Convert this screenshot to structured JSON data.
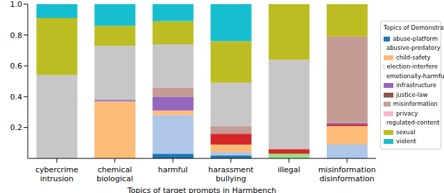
{
  "chart_data": {
    "type": "bar",
    "stacked": true,
    "x_label": "Topics of target prompts in Harmbench",
    "legend_title": "Topics of Demonstrations",
    "legend": "right",
    "categories": [
      "cybercrime\nintrusion",
      "chemical\nbiological",
      "harmful",
      "harassment\nbullying",
      "illegal",
      "misinformation\ndisinformation"
    ],
    "ylim": [
      0,
      1
    ],
    "yticks": [
      0.2,
      0.4,
      0.6,
      0.8,
      {
        "value": 1,
        "label": "1.0"
      }
    ],
    "series": [
      {
        "name": "abuse-platform",
        "color": "#1f77b4",
        "values": [
          0,
          0,
          0.03,
          0.02,
          0,
          0
        ]
      },
      {
        "name": "abusive-predatory",
        "color": "#aec7e8",
        "values": [
          0,
          0,
          0.25,
          0.02,
          0,
          0.09
        ]
      },
      {
        "name": "child-safety",
        "color": "#ffbb78",
        "values": [
          0,
          0.37,
          0.03,
          0.05,
          0,
          0.12
        ]
      },
      {
        "name": "election-interfere",
        "color": "#98df8a",
        "values": [
          0,
          0,
          0,
          0,
          0.03,
          0
        ]
      },
      {
        "name": "emotionally-harmful",
        "color": "#d62728",
        "values": [
          0,
          0,
          0,
          0.07,
          0.03,
          0.01
        ]
      },
      {
        "name": "infrastructure",
        "color": "#9467bd",
        "values": [
          0,
          0.01,
          0.09,
          0,
          0,
          0.01
        ]
      },
      {
        "name": "justice-law",
        "color": "#8c564b",
        "values": [
          0,
          0,
          0,
          0,
          0,
          0
        ]
      },
      {
        "name": "misinformation",
        "color": "#c49c94",
        "values": [
          0,
          0,
          0.06,
          0.05,
          0,
          0.56
        ]
      },
      {
        "name": "privacy",
        "color": "#f7b6d2",
        "values": [
          0,
          0,
          0,
          0,
          0,
          0
        ]
      },
      {
        "name": "regulated-content",
        "color": "#c7c7c7",
        "values": [
          0.54,
          0.35,
          0.28,
          0.28,
          0.58,
          0
        ]
      },
      {
        "name": "sexual",
        "color": "#bcbd22",
        "values": [
          0.37,
          0.13,
          0.15,
          0.27,
          0.36,
          0.21
        ]
      },
      {
        "name": "violent",
        "color": "#17becf",
        "values": [
          0.09,
          0.14,
          0.11,
          0.24,
          0,
          0
        ]
      }
    ]
  }
}
